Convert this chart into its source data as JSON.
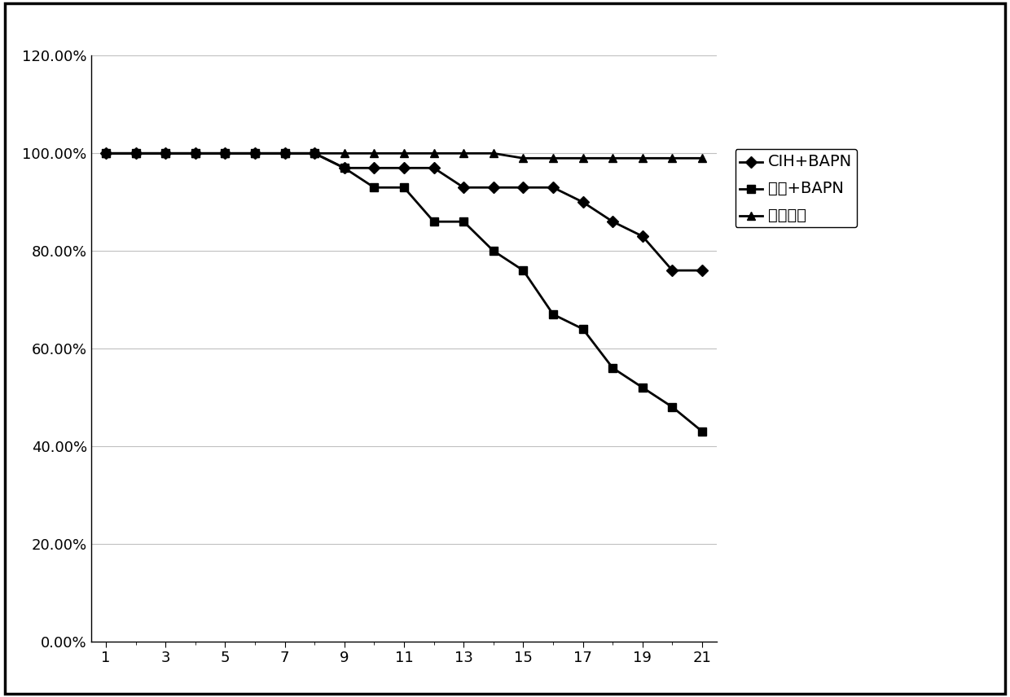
{
  "title": "",
  "xlim_min": 0.5,
  "xlim_max": 21.5,
  "ylim_min": 0.0,
  "ylim_max": 1.2,
  "xticks": [
    1,
    3,
    5,
    7,
    9,
    11,
    13,
    15,
    17,
    19,
    21
  ],
  "yticks": [
    0.0,
    0.2,
    0.4,
    0.6,
    0.8,
    1.0,
    1.2
  ],
  "ytick_labels": [
    "0.00%",
    "20.00%",
    "40.00%",
    "60.00%",
    "80.00%",
    "100.00%",
    "120.00%"
  ],
  "series": [
    {
      "label": "CIH+BAPN",
      "marker": "D",
      "color": "#000000",
      "linewidth": 2.0,
      "markersize": 7,
      "x": [
        1,
        2,
        3,
        4,
        5,
        6,
        7,
        8,
        9,
        10,
        11,
        12,
        13,
        14,
        15,
        16,
        17,
        18,
        19,
        20,
        21
      ],
      "y": [
        1.0,
        1.0,
        1.0,
        1.0,
        1.0,
        1.0,
        1.0,
        1.0,
        0.97,
        0.97,
        0.97,
        0.97,
        0.93,
        0.93,
        0.93,
        0.93,
        0.9,
        0.86,
        0.83,
        0.76,
        0.76
      ]
    },
    {
      "label": "常氧+BAPN",
      "marker": "s",
      "color": "#000000",
      "linewidth": 2.0,
      "markersize": 7,
      "x": [
        1,
        2,
        3,
        4,
        5,
        6,
        7,
        8,
        9,
        10,
        11,
        12,
        13,
        14,
        15,
        16,
        17,
        18,
        19,
        20,
        21
      ],
      "y": [
        1.0,
        1.0,
        1.0,
        1.0,
        1.0,
        1.0,
        1.0,
        1.0,
        0.97,
        0.93,
        0.93,
        0.86,
        0.86,
        0.8,
        0.76,
        0.67,
        0.64,
        0.56,
        0.52,
        0.48,
        0.43
      ]
    },
    {
      "label": "空白对照",
      "marker": "^",
      "color": "#000000",
      "linewidth": 2.0,
      "markersize": 7,
      "x": [
        1,
        2,
        3,
        4,
        5,
        6,
        7,
        8,
        9,
        10,
        11,
        12,
        13,
        14,
        15,
        16,
        17,
        18,
        19,
        20,
        21
      ],
      "y": [
        1.0,
        1.0,
        1.0,
        1.0,
        1.0,
        1.0,
        1.0,
        1.0,
        1.0,
        1.0,
        1.0,
        1.0,
        1.0,
        1.0,
        0.99,
        0.99,
        0.99,
        0.99,
        0.99,
        0.99,
        0.99
      ]
    }
  ],
  "background_color": "#ffffff",
  "grid_color": "#c0c0c0",
  "border_color": "#000000",
  "tick_fontsize": 13,
  "legend_fontsize": 14,
  "legend_labels": [
    "CIH+BAPN",
    "常氧+BAPN",
    "空白对照"
  ]
}
